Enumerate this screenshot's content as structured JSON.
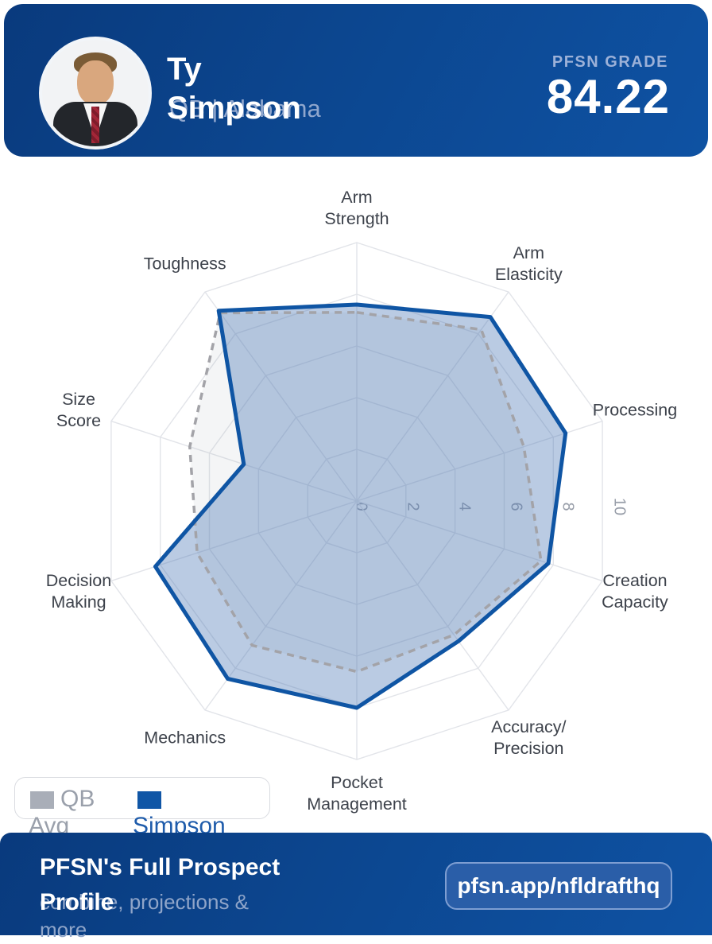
{
  "header": {
    "name_line1": "Ty",
    "name_line2": "Simpson",
    "subtitle": "QB | Alabama",
    "grade_label": "PFSN GRADE",
    "grade_value": "84.22"
  },
  "chart_data": {
    "type": "radar",
    "title": "",
    "categories": [
      "Arm Strength",
      "Arm Elasticity",
      "Processing",
      "Creation Capacity",
      "Accuracy/Precision",
      "Pocket Management",
      "Mechanics",
      "Decision Making",
      "Size Score",
      "Toughness"
    ],
    "category_lines": [
      [
        "Arm",
        "Strength"
      ],
      [
        "Arm",
        "Elasticity"
      ],
      [
        "Processing"
      ],
      [
        "Creation",
        "Capacity"
      ],
      [
        "Accuracy/",
        "Precision"
      ],
      [
        "Pocket",
        "Management"
      ],
      [
        "Mechanics"
      ],
      [
        "Decision",
        "Making"
      ],
      [
        "Size",
        "Score"
      ],
      [
        "Toughness"
      ]
    ],
    "series": [
      {
        "name": "QB Avg",
        "values": [
          7.3,
          8.2,
          6.8,
          7.5,
          6.4,
          6.6,
          6.9,
          6.5,
          6.8,
          9.0
        ],
        "stroke": "#a3a3a8",
        "fill": "rgba(166,170,180,0.12)",
        "dashed": true
      },
      {
        "name": "Simpson",
        "values": [
          7.6,
          8.8,
          8.5,
          7.8,
          6.7,
          8.0,
          8.5,
          8.2,
          4.6,
          9.1
        ],
        "stroke": "#0f55a4",
        "fill": "rgba(74,118,182,0.38)",
        "dashed": false
      }
    ],
    "ticks": [
      0,
      2,
      4,
      6,
      8,
      10
    ],
    "rmax": 10,
    "grid_color": "#e2e4e9",
    "legend_position": "bottom-left"
  },
  "legend": {
    "qb_label_top": "QB",
    "qb_label_bottom": "Avg",
    "qb_color": "#a9aeb8",
    "simpson_label": "Simpson",
    "simpson_color": "#1056a6"
  },
  "footer": {
    "title_line1": "PFSN's Full Prospect",
    "title_line2": "Profile",
    "subtitle_line1": "combine, projections &",
    "subtitle_line2": "more",
    "button_label": "pfsn.app/nfldrafthq"
  }
}
